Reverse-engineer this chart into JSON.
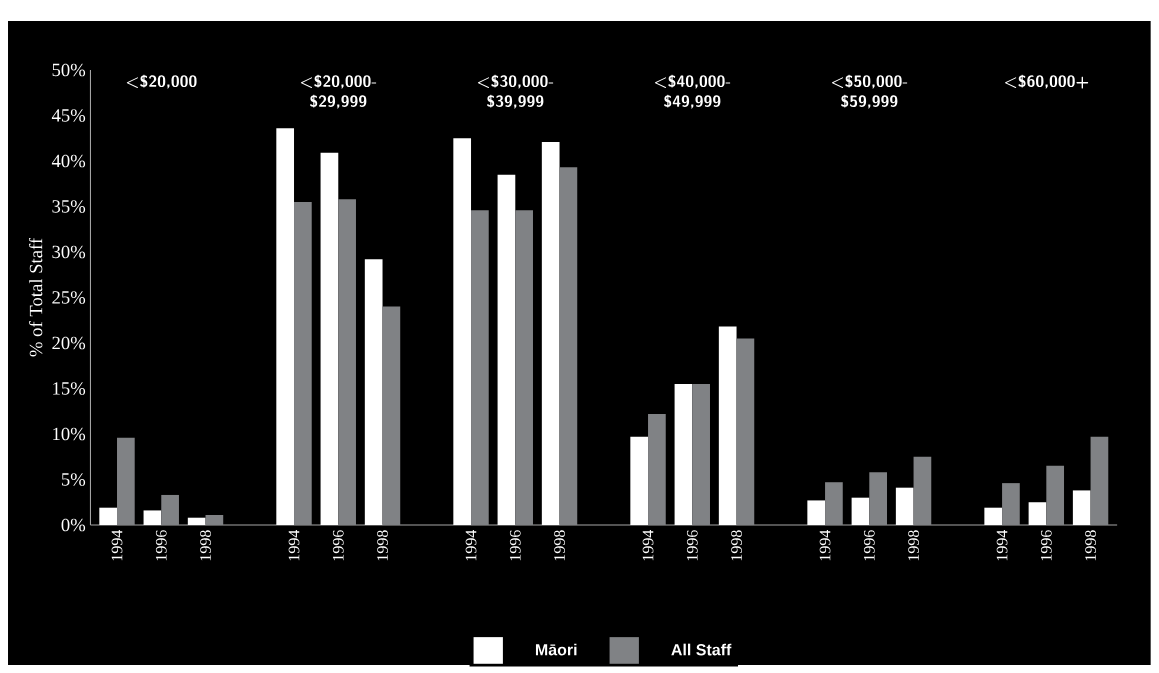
{
  "chart_data": {
    "type": "bar",
    "ylabel": "% of Total Staff",
    "categories": [
      "1994",
      "1996",
      "1998",
      null,
      "1994",
      "1996",
      "1998",
      null,
      "1994",
      "1996",
      "1998",
      null,
      "1994",
      "1996",
      "1998",
      null,
      "1994",
      "1996",
      "1998",
      null,
      "1994",
      "1996",
      "1998"
    ],
    "series": [
      {
        "name": "Māori",
        "color": "#ffffff",
        "values": [
          1.9,
          1.6,
          0.8,
          null,
          43.6,
          40.9,
          29.2,
          null,
          42.5,
          38.5,
          42.1,
          null,
          9.7,
          15.5,
          21.8,
          null,
          2.7,
          3.0,
          4.1,
          null,
          1.9,
          2.5,
          3.8
        ]
      },
      {
        "name": "All Staff",
        "color": "#808285",
        "values": [
          9.6,
          3.3,
          1.1,
          null,
          35.5,
          35.8,
          24.0,
          null,
          34.6,
          34.6,
          39.3,
          null,
          12.2,
          15.5,
          20.5,
          null,
          4.7,
          5.8,
          7.5,
          null,
          4.6,
          6.5,
          9.7
        ]
      }
    ],
    "ylim": [
      0,
      50
    ],
    "yticks": [
      {
        "value": 0,
        "label": "0%"
      },
      {
        "value": 5,
        "label": "5%"
      },
      {
        "value": 10,
        "label": "10%"
      },
      {
        "value": 15,
        "label": "15%"
      },
      {
        "value": 20,
        "label": "20%"
      },
      {
        "value": 25,
        "label": "25%"
      },
      {
        "value": 30,
        "label": "30%"
      },
      {
        "value": 35,
        "label": "35%"
      },
      {
        "value": 40,
        "label": "40%"
      },
      {
        "value": 45,
        "label": "45%"
      },
      {
        "value": 50,
        "label": "50%"
      }
    ],
    "annotations": [
      "<$20,000",
      "<$20,000- $29,999",
      "<$30,000- $39,999",
      "<$40,000- $49,999",
      "<$50,000- $59,999",
      "<$60,000+"
    ],
    "grid": false,
    "legend": "bottom"
  }
}
